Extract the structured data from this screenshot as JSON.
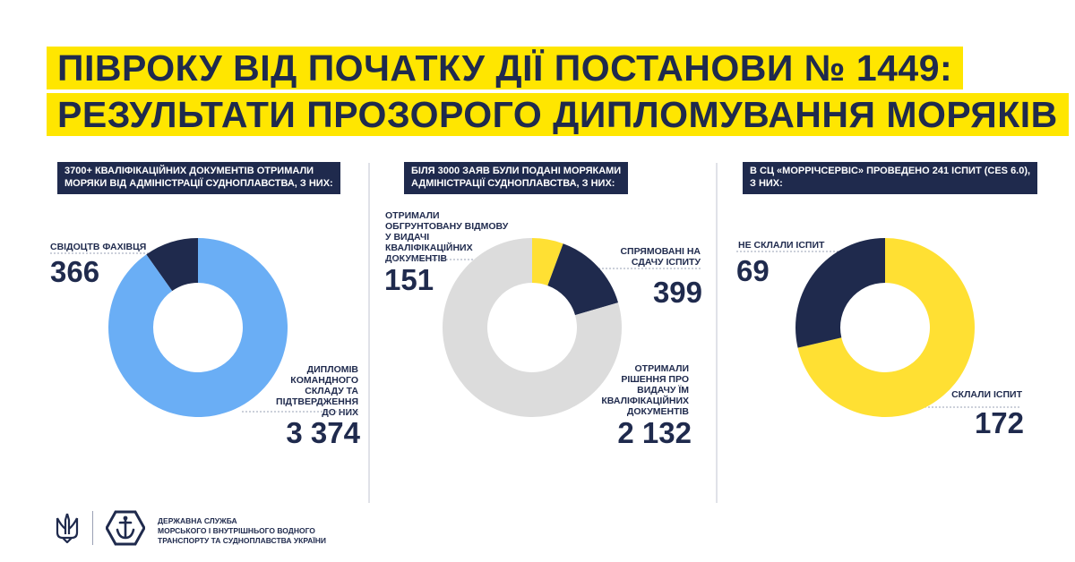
{
  "title": {
    "line1": "ПІВРОКУ ВІД ПОЧАТКУ ДІЇ ПОСТАНОВИ № 1449:",
    "line2": "РЕЗУЛЬТАТИ ПРОЗОРОГО ДИПЛОМУВАННЯ МОРЯКІВ"
  },
  "colors": {
    "navy": "#1f2a4d",
    "light_blue": "#6aaef5",
    "gray": "#dcdcdc",
    "yellow": "#ffe033",
    "title_bg": "#ffe600"
  },
  "chart_data": [
    {
      "type": "pie",
      "title_lines": [
        "3700+ КВАЛІФІКАЦІЙНИХ ДОКУМЕНТІВ ОТРИМАЛИ",
        "МОРЯКИ ВІД АДМІНІСТРАЦІЇ СУДНОПЛАВСТВА, З НИХ:"
      ],
      "slices": [
        {
          "label_lines": [
            "СВІДОЦТВ ФАХІВЦЯ"
          ],
          "value": 366,
          "value_text": "366",
          "color": "#1f2a4d"
        },
        {
          "label_lines": [
            "ДИПЛОМІВ",
            "КОМАНДНОГО",
            "СКЛАДУ ТА",
            "ПІДТВЕРДЖЕННЯ",
            "ДО НИХ"
          ],
          "value": 3374,
          "value_text": "3 374",
          "color": "#6aaef5"
        }
      ]
    },
    {
      "type": "pie",
      "title_lines": [
        "БІЛЯ 3000 ЗАЯВ БУЛИ ПОДАНІ МОРЯКАМИ",
        "АДМІНІСТРАЦІЇ СУДНОПЛАВСТВА, З НИХ:"
      ],
      "slices": [
        {
          "label_lines": [
            "ОТРИМАЛИ",
            "ОБГРУНТОВАНУ ВІДМОВУ",
            "У ВИДАЧІ",
            "КВАЛІФІКАЦІЙНИХ",
            "ДОКУМЕНТІВ"
          ],
          "value": 151,
          "value_text": "151",
          "color": "#ffe033"
        },
        {
          "label_lines": [
            "СПРЯМОВАНІ НА",
            "СДАЧУ ІСПИТУ"
          ],
          "value": 399,
          "value_text": "399",
          "color": "#1f2a4d"
        },
        {
          "label_lines": [
            "ОТРИМАЛИ",
            "РІШЕННЯ ПРО",
            "ВИДАЧУ ЇМ",
            "КВАЛІФІКАЦІЙНИХ",
            "ДОКУМЕНТІВ"
          ],
          "value": 2132,
          "value_text": "2 132",
          "color": "#dcdcdc"
        }
      ]
    },
    {
      "type": "pie",
      "title_lines": [
        "В СЦ «МОРРІЧСЕРВІС» ПРОВЕДЕНО 241 ІСПИТ (CES 6.0),",
        "З НИХ:"
      ],
      "slices": [
        {
          "label_lines": [
            "СКЛАЛИ ІСПИТ"
          ],
          "value": 172,
          "value_text": "172",
          "color": "#ffe033"
        },
        {
          "label_lines": [
            "НЕ СКЛАЛИ ІСПИТ"
          ],
          "value": 69,
          "value_text": "69",
          "color": "#1f2a4d"
        }
      ]
    }
  ],
  "footer": {
    "org_lines": [
      "ДЕРЖАВНА СЛУЖБА",
      "МОРСЬКОГО І ВНУТРІШНЬОГО ВОДНОГО",
      "ТРАНСПОРТУ ТА СУДНОПЛАВСТВА УКРАЇНИ"
    ]
  }
}
